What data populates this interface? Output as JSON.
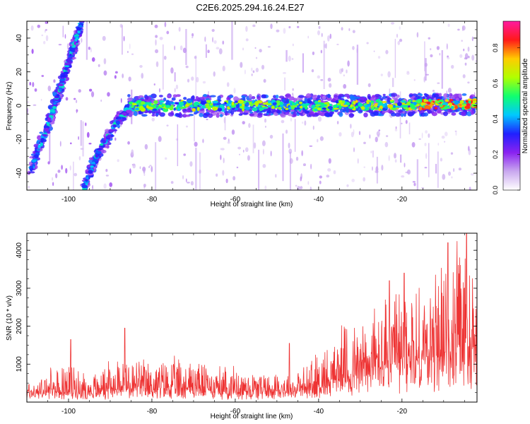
{
  "figure": {
    "title": "C2E6.2025.294.16.24.E27"
  },
  "chart_data": [
    {
      "type": "heatmap",
      "name": "spectrogram",
      "xlabel": "Height of straight line (km)",
      "ylabel": "Frequency (Hz)",
      "xlim": [
        -110,
        -2
      ],
      "ylim": [
        -50,
        50
      ],
      "xticks": [
        -100,
        -80,
        -60,
        -40,
        -20
      ],
      "yticks": [
        -40,
        -20,
        0,
        20,
        40
      ],
      "colorbar": {
        "label": "Normalized spectral amplitude",
        "range": [
          0.0,
          0.95
        ],
        "ticks": [
          0.0,
          0.2,
          0.4,
          0.6,
          0.8
        ],
        "tick_labels": [
          "0.0",
          "0.2",
          "0.4",
          "0.6",
          "0.8"
        ],
        "colormap": [
          "#ffffff",
          "#c9a8ef",
          "#8a22f0",
          "#2020ff",
          "#00c8ff",
          "#10ff70",
          "#b0ff00",
          "#ffcc00",
          "#ff1a1a",
          "#ff1aa0"
        ]
      },
      "features": [
        {
          "name": "steep-trace-1",
          "points": [
            [
              -109,
              -38
            ],
            [
              -104,
              -5
            ],
            [
              -100,
              25
            ],
            [
              -97,
              48
            ]
          ],
          "amplitude": 0.35
        },
        {
          "name": "steep-trace-2",
          "points": [
            [
              -96.5,
              -50
            ],
            [
              -93,
              -28
            ],
            [
              -88,
              -8
            ],
            [
              -85,
              -1
            ],
            [
              -80,
              0.5
            ]
          ],
          "amplitude": 0.35
        },
        {
          "name": "main-band",
          "points": [
            [
              -85,
              0
            ],
            [
              -60,
              0
            ],
            [
              -40,
              0
            ],
            [
              -20,
              0.5
            ],
            [
              -2,
              1
            ]
          ],
          "amplitude": 0.5,
          "peak_amplitude": 0.9
        }
      ]
    },
    {
      "type": "line",
      "name": "snr",
      "xlabel": "Height of straight line (km)",
      "ylabel": "SNR (10 * v/v)",
      "xlim": [
        -110,
        -2
      ],
      "ylim": [
        0,
        4450
      ],
      "xticks": [
        -100,
        -80,
        -60,
        -40,
        -20
      ],
      "yticks": [
        1000,
        2000,
        3000,
        4000
      ],
      "color": "#ee3333",
      "envelope": [
        {
          "x": -110,
          "base": 220,
          "peak": 600
        },
        {
          "x": -100,
          "base": 260,
          "peak": 1100
        },
        {
          "x": -95,
          "base": 280,
          "peak": 700
        },
        {
          "x": -88,
          "base": 380,
          "peak": 1300
        },
        {
          "x": -80,
          "base": 380,
          "peak": 1100
        },
        {
          "x": -72,
          "base": 360,
          "peak": 1250
        },
        {
          "x": -63,
          "base": 320,
          "peak": 1000
        },
        {
          "x": -55,
          "base": 300,
          "peak": 900
        },
        {
          "x": -45,
          "base": 300,
          "peak": 850
        },
        {
          "x": -40,
          "base": 380,
          "peak": 1400
        },
        {
          "x": -35,
          "base": 650,
          "peak": 2000
        },
        {
          "x": -30,
          "base": 800,
          "peak": 2400
        },
        {
          "x": -25,
          "base": 900,
          "peak": 2800
        },
        {
          "x": -20,
          "base": 950,
          "peak": 3200
        },
        {
          "x": -15,
          "base": 1000,
          "peak": 3400
        },
        {
          "x": -10,
          "base": 1200,
          "peak": 3900
        },
        {
          "x": -5,
          "base": 1500,
          "peak": 4400
        },
        {
          "x": -2,
          "base": 1700,
          "peak": 3400
        }
      ],
      "notable_peaks": [
        {
          "x": -99.5,
          "y": 1650
        },
        {
          "x": -86.5,
          "y": 1950
        },
        {
          "x": -47,
          "y": 1550
        },
        {
          "x": -23,
          "y": 3200
        },
        {
          "x": -19.5,
          "y": 3400
        },
        {
          "x": -9,
          "y": 4200
        },
        {
          "x": -4.5,
          "y": 4450
        }
      ]
    }
  ]
}
